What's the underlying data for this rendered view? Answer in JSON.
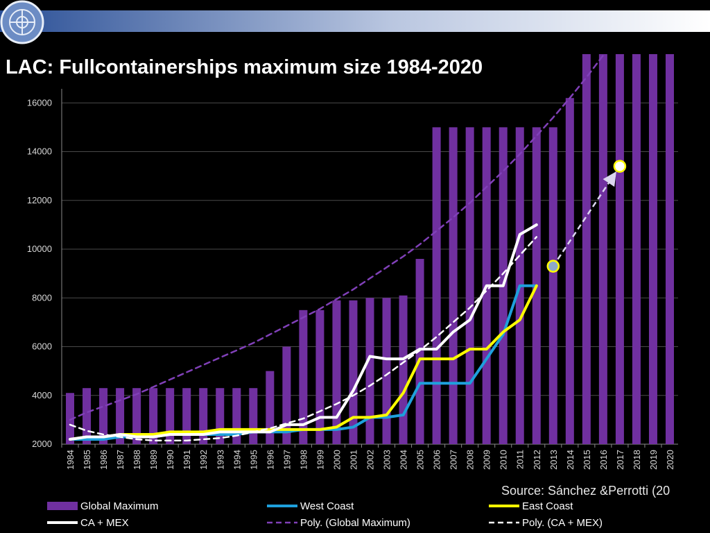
{
  "chart_data": {
    "type": "bar",
    "title": "LAC: Fullcontainerships maximum size 1984-2020",
    "source": "Source: Sánchez &Perrotti (20",
    "categories": [
      "1984",
      "1985",
      "1986",
      "1987",
      "1988",
      "1989",
      "1990",
      "1991",
      "1992",
      "1993",
      "1994",
      "1995",
      "1996",
      "1997",
      "1998",
      "1999",
      "2000",
      "2001",
      "2002",
      "2003",
      "2004",
      "2005",
      "2006",
      "2007",
      "2008",
      "2009",
      "2010",
      "2011",
      "2012",
      "2013",
      "2014",
      "2015",
      "2016",
      "2017",
      "2018",
      "2019",
      "2020"
    ],
    "ylim": [
      2000,
      18000
    ],
    "yticks": [
      2000,
      4000,
      6000,
      8000,
      10000,
      12000,
      14000,
      16000
    ],
    "grid": true,
    "series": [
      {
        "name": "Global Maximum",
        "type": "bar",
        "color": "#7030a0",
        "values": [
          4100,
          4300,
          4300,
          4300,
          4300,
          4300,
          4300,
          4300,
          4300,
          4300,
          4300,
          4300,
          5000,
          6000,
          7500,
          7500,
          7900,
          7900,
          8000,
          8000,
          8100,
          9600,
          15000,
          15000,
          15000,
          15000,
          15000,
          15000,
          15000,
          15000,
          16200,
          18000,
          18000,
          18000,
          18000,
          18000,
          18000
        ]
      },
      {
        "name": "West Coast",
        "type": "line",
        "color": "#1ea0dc",
        "values": [
          2200,
          2200,
          2200,
          2300,
          2300,
          2300,
          2400,
          2400,
          2400,
          2400,
          2400,
          2500,
          2500,
          2500,
          2600,
          2600,
          2600,
          2700,
          3100,
          3100,
          3200,
          4500,
          4500,
          4500,
          4500,
          5500,
          6500,
          8500,
          8500,
          null,
          null,
          null,
          null,
          null,
          null,
          null,
          null
        ]
      },
      {
        "name": "East Coast",
        "type": "line",
        "color": "#ffff00",
        "values": [
          2200,
          2300,
          2300,
          2400,
          2400,
          2400,
          2500,
          2500,
          2500,
          2600,
          2600,
          2600,
          2600,
          2600,
          2600,
          2600,
          2700,
          3100,
          3100,
          3200,
          4100,
          5500,
          5500,
          5500,
          5900,
          5900,
          6600,
          7100,
          8500,
          null,
          null,
          null,
          null,
          null,
          null,
          null,
          null
        ]
      },
      {
        "name": "CA + MEX",
        "type": "line",
        "color": "#ffffff",
        "values": [
          2200,
          2300,
          2300,
          2400,
          2300,
          2300,
          2400,
          2400,
          2400,
          2500,
          2500,
          2500,
          2500,
          2800,
          2800,
          3100,
          3100,
          4200,
          5600,
          5500,
          5500,
          5900,
          5900,
          6600,
          7100,
          8500,
          8500,
          10600,
          11000,
          null,
          null,
          null,
          null,
          null,
          null,
          null,
          null
        ]
      },
      {
        "name": "Poly. (Global Maximum)",
        "type": "line",
        "dashed": true,
        "color": "#8040b8",
        "values": [
          3000,
          3300,
          3550,
          3800,
          4050,
          4350,
          4650,
          4950,
          5250,
          5550,
          5850,
          6150,
          6500,
          6850,
          7200,
          7550,
          7950,
          8350,
          8800,
          9250,
          9700,
          10200,
          10750,
          11300,
          11900,
          12550,
          13200,
          13900,
          14650,
          15400,
          16200,
          17050,
          17950,
          null,
          null,
          null,
          null
        ]
      },
      {
        "name": "Poly. (CA + MEX)",
        "type": "line",
        "dashed": true,
        "color": "#ffffff",
        "values": [
          2800,
          2550,
          2400,
          2300,
          2200,
          2150,
          2150,
          2150,
          2200,
          2250,
          2350,
          2500,
          2650,
          2850,
          3050,
          3350,
          3650,
          4000,
          4400,
          4850,
          5350,
          5850,
          6400,
          7000,
          7600,
          8300,
          9000,
          9750,
          10500,
          null,
          null,
          null,
          null,
          null,
          null,
          null,
          null
        ]
      }
    ],
    "projection_points": [
      {
        "category": "2013",
        "value": 9300,
        "color": "#8ea9c8"
      },
      {
        "category": "2017",
        "value": 13400,
        "color": "#ffffff"
      }
    ]
  }
}
